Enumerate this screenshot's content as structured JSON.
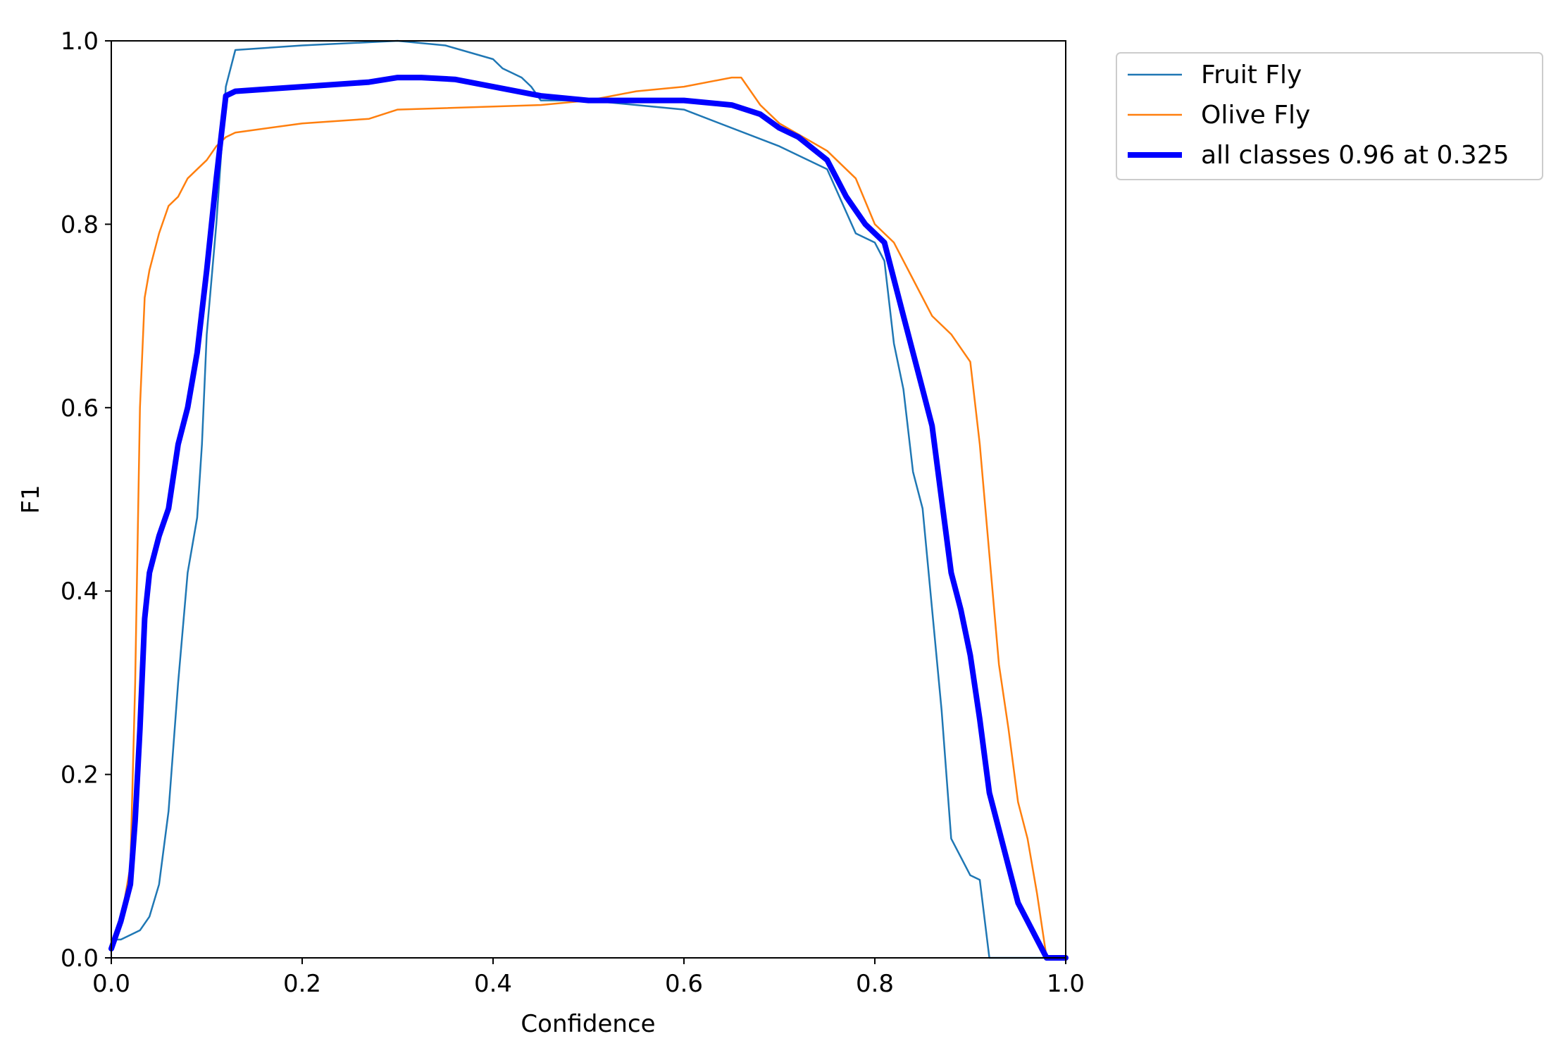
{
  "chart_data": {
    "type": "line",
    "title": "",
    "xlabel": "Confidence",
    "ylabel": "F1",
    "xlim": [
      0.0,
      1.0
    ],
    "ylim": [
      0.0,
      1.0
    ],
    "xticks": [
      "0.0",
      "0.2",
      "0.4",
      "0.6",
      "0.8",
      "1.0"
    ],
    "yticks": [
      "0.0",
      "0.2",
      "0.4",
      "0.6",
      "0.8",
      "1.0"
    ],
    "grid": false,
    "legend_position": "outside-top-right",
    "series": [
      {
        "name": "Fruit Fly",
        "color": "#1f77b4",
        "x": [
          0.0,
          0.01,
          0.02,
          0.03,
          0.04,
          0.05,
          0.06,
          0.07,
          0.08,
          0.09,
          0.095,
          0.1,
          0.11,
          0.12,
          0.13,
          0.2,
          0.3,
          0.35,
          0.4,
          0.41,
          0.42,
          0.43,
          0.44,
          0.45,
          0.5,
          0.6,
          0.7,
          0.75,
          0.78,
          0.8,
          0.81,
          0.82,
          0.83,
          0.84,
          0.85,
          0.86,
          0.87,
          0.88,
          0.89,
          0.9,
          0.91,
          0.92,
          0.922,
          1.0
        ],
        "y": [
          0.02,
          0.02,
          0.025,
          0.03,
          0.045,
          0.08,
          0.16,
          0.3,
          0.42,
          0.48,
          0.56,
          0.68,
          0.8,
          0.95,
          0.99,
          0.995,
          1.0,
          0.995,
          0.98,
          0.97,
          0.965,
          0.96,
          0.95,
          0.935,
          0.935,
          0.925,
          0.885,
          0.86,
          0.79,
          0.78,
          0.76,
          0.67,
          0.62,
          0.53,
          0.49,
          0.38,
          0.27,
          0.13,
          0.11,
          0.09,
          0.085,
          0.0,
          0.0,
          0.0
        ]
      },
      {
        "name": "Olive Fly",
        "color": "#ff7f0e",
        "x": [
          0.0,
          0.01,
          0.02,
          0.025,
          0.03,
          0.035,
          0.04,
          0.05,
          0.06,
          0.07,
          0.08,
          0.09,
          0.1,
          0.11,
          0.12,
          0.13,
          0.2,
          0.27,
          0.3,
          0.45,
          0.5,
          0.55,
          0.6,
          0.65,
          0.66,
          0.68,
          0.7,
          0.75,
          0.78,
          0.8,
          0.82,
          0.84,
          0.86,
          0.88,
          0.9,
          0.91,
          0.92,
          0.93,
          0.94,
          0.95,
          0.96,
          0.97,
          0.98,
          1.0
        ],
        "y": [
          0.01,
          0.04,
          0.1,
          0.3,
          0.6,
          0.72,
          0.75,
          0.79,
          0.82,
          0.83,
          0.85,
          0.86,
          0.87,
          0.885,
          0.895,
          0.9,
          0.91,
          0.915,
          0.925,
          0.93,
          0.935,
          0.945,
          0.95,
          0.96,
          0.96,
          0.93,
          0.91,
          0.88,
          0.85,
          0.8,
          0.78,
          0.74,
          0.7,
          0.68,
          0.65,
          0.56,
          0.44,
          0.32,
          0.25,
          0.17,
          0.13,
          0.07,
          0.0,
          0.0
        ]
      },
      {
        "name": "all classes 0.96 at 0.325",
        "color": "#0000ff",
        "x": [
          0.0,
          0.01,
          0.02,
          0.025,
          0.03,
          0.035,
          0.04,
          0.05,
          0.06,
          0.07,
          0.08,
          0.09,
          0.1,
          0.11,
          0.12,
          0.13,
          0.2,
          0.27,
          0.3,
          0.325,
          0.36,
          0.4,
          0.45,
          0.5,
          0.55,
          0.6,
          0.65,
          0.68,
          0.7,
          0.72,
          0.75,
          0.77,
          0.79,
          0.81,
          0.82,
          0.83,
          0.84,
          0.85,
          0.86,
          0.87,
          0.88,
          0.89,
          0.9,
          0.91,
          0.92,
          0.93,
          0.94,
          0.95,
          0.96,
          0.97,
          0.98,
          1.0
        ],
        "y": [
          0.01,
          0.04,
          0.08,
          0.15,
          0.25,
          0.37,
          0.42,
          0.46,
          0.49,
          0.56,
          0.6,
          0.66,
          0.75,
          0.85,
          0.94,
          0.945,
          0.95,
          0.955,
          0.96,
          0.96,
          0.958,
          0.95,
          0.94,
          0.935,
          0.935,
          0.935,
          0.93,
          0.92,
          0.905,
          0.895,
          0.87,
          0.83,
          0.8,
          0.78,
          0.74,
          0.7,
          0.66,
          0.62,
          0.58,
          0.5,
          0.42,
          0.38,
          0.33,
          0.26,
          0.18,
          0.14,
          0.1,
          0.06,
          0.04,
          0.02,
          0.0,
          0.0
        ]
      }
    ]
  }
}
